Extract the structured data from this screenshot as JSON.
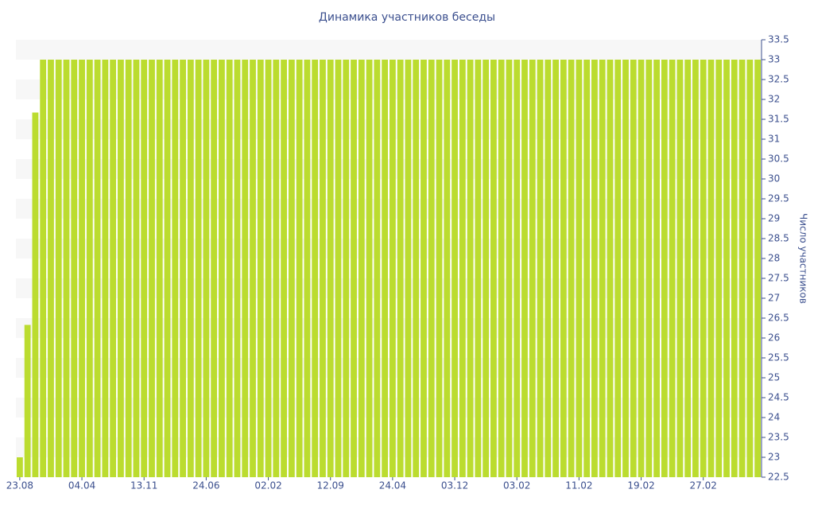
{
  "chart_data": {
    "type": "bar",
    "title": "Динамика участников беседы",
    "y_axis_label": "Число участников",
    "categories": [
      "23.08",
      null,
      null,
      null,
      null,
      null,
      null,
      null,
      "04.04",
      null,
      null,
      null,
      null,
      null,
      null,
      null,
      "13.11",
      null,
      null,
      null,
      null,
      null,
      null,
      null,
      "24.06",
      null,
      null,
      null,
      null,
      null,
      null,
      null,
      "02.02",
      null,
      null,
      null,
      null,
      null,
      null,
      null,
      "12.09",
      null,
      null,
      null,
      null,
      null,
      null,
      null,
      "24.04",
      null,
      null,
      null,
      null,
      null,
      null,
      null,
      "03.12",
      null,
      null,
      null,
      null,
      null,
      null,
      null,
      "03.02",
      null,
      null,
      null,
      null,
      null,
      null,
      null,
      "11.02",
      null,
      null,
      null,
      null,
      null,
      null,
      null,
      "19.02",
      null,
      null,
      null,
      null,
      null,
      null,
      null,
      "27.02",
      null,
      null,
      null,
      null,
      null,
      null,
      null
    ],
    "values": [
      23,
      26.33,
      31.67,
      33,
      33,
      33,
      33,
      33,
      33,
      33,
      33,
      33,
      33,
      33,
      33,
      33,
      33,
      33,
      33,
      33,
      33,
      33,
      33,
      33,
      33,
      33,
      33,
      33,
      33,
      33,
      33,
      33,
      33,
      33,
      33,
      33,
      33,
      33,
      33,
      33,
      33,
      33,
      33,
      33,
      33,
      33,
      33,
      33,
      33,
      33,
      33,
      33,
      33,
      33,
      33,
      33,
      33,
      33,
      33,
      33,
      33,
      33,
      33,
      33,
      33,
      33,
      33,
      33,
      33,
      33,
      33,
      33,
      33,
      33,
      33,
      33,
      33,
      33,
      33,
      33,
      33,
      33,
      33,
      33,
      33,
      33,
      33,
      33,
      33,
      33,
      33,
      33,
      33,
      33,
      33,
      33
    ],
    "color": "#bbdc2f",
    "ylim": [
      22.5,
      33.5
    ],
    "yticks": [
      22.5,
      23,
      23.5,
      24,
      24.5,
      25,
      25.5,
      26,
      26.5,
      27,
      27.5,
      28,
      28.5,
      29,
      29.5,
      30,
      30.5,
      31,
      31.5,
      32,
      32.5,
      33,
      33.5
    ],
    "y_axis_side": "right",
    "grid": "bands"
  }
}
